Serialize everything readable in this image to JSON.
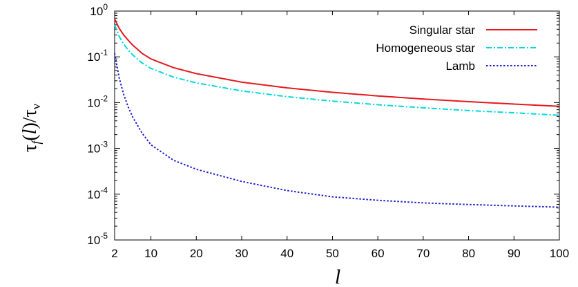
{
  "chart_data": {
    "type": "line",
    "title": "",
    "xlabel": "l",
    "ylabel": {
      "prefix": "τ",
      "sub": "f",
      "open": "(",
      "arg": "l",
      "close": ")/τ",
      "sub2": "ν"
    },
    "xlim": [
      2,
      100
    ],
    "ylim": [
      1e-05,
      1
    ],
    "yscale": "log",
    "grid": false,
    "legend_position": "top-right",
    "x_ticks": [
      2,
      10,
      20,
      30,
      40,
      50,
      60,
      70,
      80,
      90,
      100
    ],
    "x_tick_labels": [
      "2",
      "10",
      "20",
      "30",
      "40",
      "50",
      "60",
      "70",
      "80",
      "90",
      "100"
    ],
    "y_ticks": [
      {
        "value": 1e-05,
        "base": "10",
        "exp": "-5"
      },
      {
        "value": 0.0001,
        "base": "10",
        "exp": "-4"
      },
      {
        "value": 0.001,
        "base": "10",
        "exp": "-3"
      },
      {
        "value": 0.01,
        "base": "10",
        "exp": "-2"
      },
      {
        "value": 0.1,
        "base": "10",
        "exp": "-1"
      },
      {
        "value": 1,
        "base": "10",
        "exp": "0"
      }
    ],
    "series": [
      {
        "name": "Singular star",
        "color": "#e41a1c",
        "dash": "solid",
        "x": [
          2,
          3,
          4,
          5,
          6,
          8,
          10,
          15,
          20,
          30,
          40,
          50,
          60,
          70,
          80,
          90,
          100
        ],
        "values": [
          0.67,
          0.42,
          0.3,
          0.23,
          0.18,
          0.12,
          0.09,
          0.058,
          0.043,
          0.028,
          0.021,
          0.0168,
          0.014,
          0.012,
          0.0105,
          0.0093,
          0.0083
        ]
      },
      {
        "name": "Homogeneous star",
        "color": "#00d8e0",
        "dash": "dashdot",
        "x": [
          2,
          3,
          4,
          5,
          6,
          8,
          10,
          15,
          20,
          30,
          40,
          50,
          60,
          70,
          80,
          90,
          100
        ],
        "values": [
          0.5,
          0.28,
          0.19,
          0.14,
          0.11,
          0.074,
          0.056,
          0.036,
          0.027,
          0.018,
          0.0135,
          0.0108,
          0.009,
          0.0077,
          0.0067,
          0.006,
          0.0053
        ]
      },
      {
        "name": "Lamb",
        "color": "#1f1fd0",
        "dash": "dotted",
        "x": [
          2,
          3,
          4,
          5,
          6,
          8,
          10,
          15,
          20,
          30,
          40,
          50,
          60,
          70,
          80,
          90,
          100
        ],
        "values": [
          0.12,
          0.035,
          0.015,
          0.008,
          0.0048,
          0.0022,
          0.0012,
          0.00055,
          0.00035,
          0.00019,
          0.00012,
          8.75e-05,
          7.35e-05,
          6.45e-05,
          5.95e-05,
          5.55e-05,
          5.2e-05
        ]
      }
    ]
  }
}
